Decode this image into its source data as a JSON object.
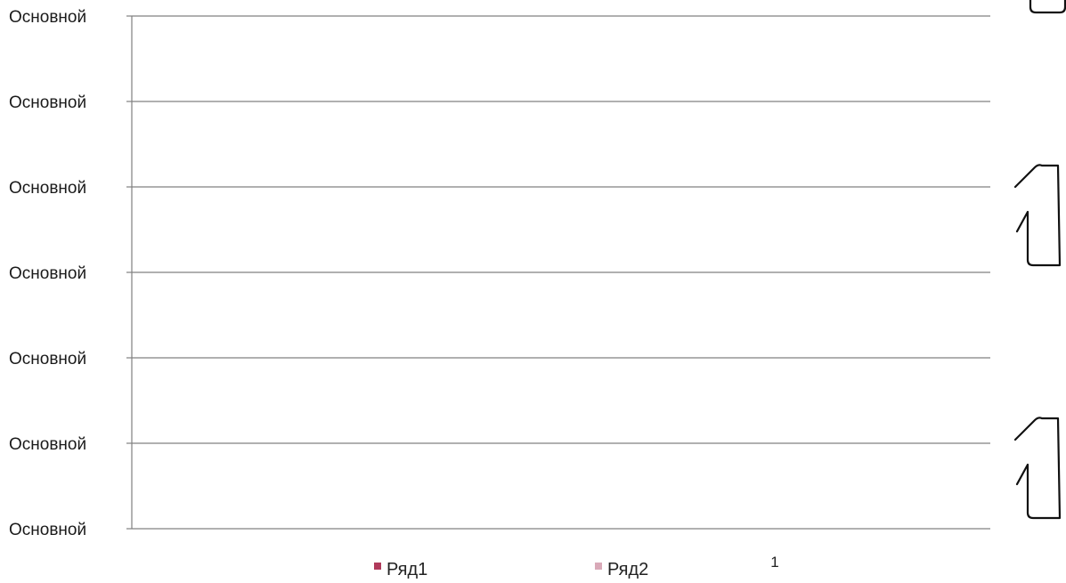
{
  "chart_data": {
    "type": "bar",
    "categories": [
      "1"
    ],
    "series": [
      {
        "name": "Ряд1",
        "values": [
          null
        ],
        "color": "#b03a5b"
      },
      {
        "name": "Ряд2",
        "values": [
          null
        ],
        "color": "#d9a9b8"
      }
    ],
    "y_tick_labels": [
      "Основной",
      "Основной",
      "Основной",
      "Основной",
      "Основной",
      "Основной",
      "Основной"
    ],
    "grid": true,
    "legend_position": "bottom",
    "colors": {
      "gridline": "#808080",
      "axis": "#808080",
      "text": "#1a1a1a"
    }
  }
}
